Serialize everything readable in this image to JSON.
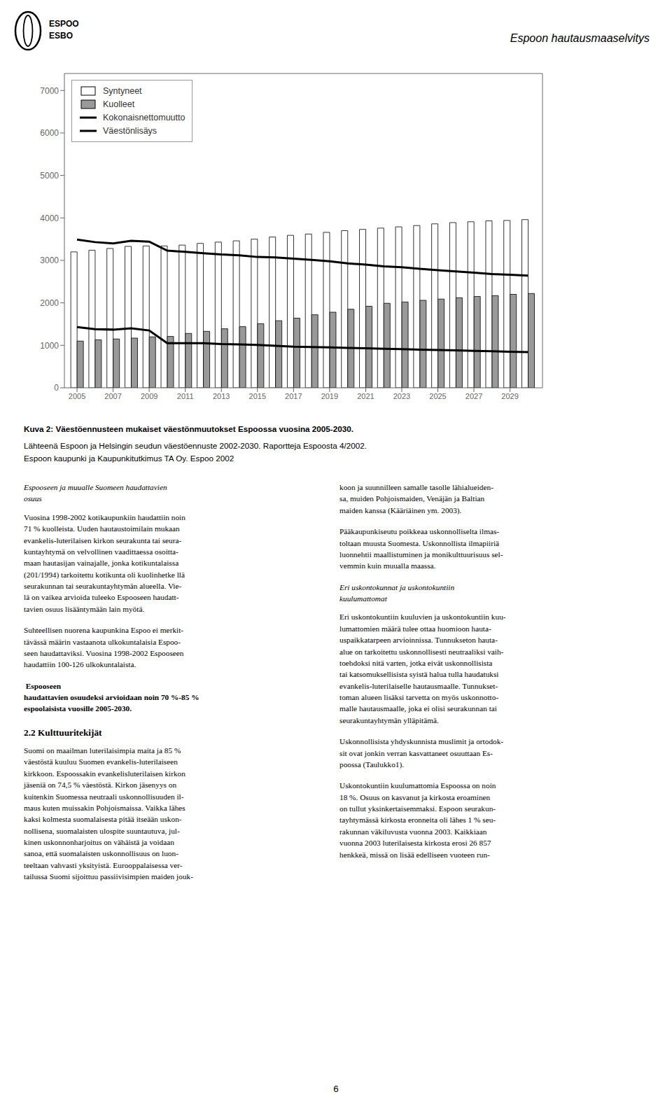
{
  "chart_data": {
    "type": "bar",
    "title": "Kuva 2: Väestöennusteen mukaiset väestönmuutokset Espoossa vuosina 2005-2030.",
    "x": [
      2005,
      2006,
      2007,
      2008,
      2009,
      2010,
      2011,
      2012,
      2013,
      2014,
      2015,
      2016,
      2017,
      2018,
      2019,
      2020,
      2021,
      2022,
      2023,
      2024,
      2025,
      2026,
      2027,
      2028,
      2029,
      2030
    ],
    "xlim": [
      2004.3,
      2030.8
    ],
    "xticks": [
      2005,
      2007,
      2009,
      2011,
      2013,
      2015,
      2017,
      2019,
      2021,
      2023,
      2025,
      2027,
      2029
    ],
    "ylim": [
      0,
      7400
    ],
    "yticks": [
      0,
      1000,
      2000,
      3000,
      4000,
      5000,
      6000,
      7000
    ],
    "grid": false,
    "legend": "upper left",
    "series": [
      {
        "name": "Syntyneet",
        "type": "bar",
        "color": "#ffffff",
        "values": [
          3200,
          3240,
          3280,
          3330,
          3340,
          3340,
          3360,
          3400,
          3430,
          3460,
          3500,
          3550,
          3590,
          3620,
          3660,
          3700,
          3730,
          3760,
          3790,
          3820,
          3860,
          3890,
          3910,
          3930,
          3940,
          3960
        ]
      },
      {
        "name": "Kuolleet",
        "type": "bar",
        "color": "#999999",
        "values": [
          1100,
          1130,
          1150,
          1170,
          1200,
          1210,
          1280,
          1330,
          1390,
          1440,
          1510,
          1580,
          1640,
          1720,
          1780,
          1850,
          1920,
          1990,
          2020,
          2060,
          2090,
          2120,
          2150,
          2170,
          2200,
          2220
        ]
      },
      {
        "name": "Kokonaisnettomuutto",
        "type": "line",
        "color": "#000000",
        "values": [
          3490,
          3430,
          3400,
          3460,
          3440,
          3230,
          3200,
          3170,
          3140,
          3120,
          3080,
          3070,
          3040,
          3010,
          2980,
          2930,
          2900,
          2860,
          2840,
          2800,
          2770,
          2740,
          2710,
          2680,
          2660,
          2640
        ]
      },
      {
        "name": "Väestönlisäys",
        "type": "line",
        "color": "#000000",
        "values": [
          1430,
          1380,
          1370,
          1400,
          1350,
          1050,
          1050,
          1050,
          1030,
          1020,
          1010,
          990,
          970,
          960,
          950,
          940,
          930,
          920,
          910,
          900,
          890,
          880,
          870,
          860,
          850,
          840
        ]
      }
    ],
    "annotations": [
      "ESPOO",
      "ESBO",
      "Espoon hautausmaaselvitys",
      "Lähteenä Espoon ja Helsingin seudun väestöennuste 2002-2030. Raportteja Espoosta 4/2002.",
      "Espoon kaupunki ja Kaupunkitutkimus TA Oy. Espoo 2002",
      "Espooseen ja muualle Suomeen haudattavien\nosuus",
      "Vuosina 1998-2002 kotikaupunkiin haudattiin noin\n71 % kuolleista. Uuden hautaustoimilain mukaan\nevankelis-luterilaisen kirkon seurakunta tai seura-\nkuntayhtymä on velvollinen vaadittaessa osoitta-\nmaan hautasijan vainajalle, jonka kotikuntalaissa\n(201/1994) tarkoitettu kotikunta oli kuolinhetke llä\nseurakunnan tai seurakuntayhtymän alueella. Vie-\nlä on vaikea arvioida tuleeko Espooseen haudatt-\ntavien osuus lisääntymään lain myötä.",
      "Suhteellisen nuorena kaupunkina Espoo ei merkit-\ntävässä määrin vastaanota ulkokuntalaisia Espoo-\nseen haudattaviksi. Vuosina 1998-2002 Espooseen\nhaudattiin 100-126 ulkokuntalaista.",
      " Espooseen\nhaudattavien osuudeksi arvioidaan noin 70 %-85 %\nespoolaisista vuosille 2005-2030.",
      "2.2 Kulttuuritekijät",
      "Suomi on maailman luterilaisimpia maita ja 85 %\nväestöstä kuuluu Suomen evankelis-luterilaiseen\nkirkkoon. Espoossakin evankelisluterilaisen kirkon\njäseniä on 74,5 % väestöstä. Kirkon jäsenyys on\nkuitenkin Suomessa neutraali uskonnollisuuden il-\nmaus kuten muissakin Pohjoismaissa. Vaikka lähes\nkaksi kolmesta suomalaisesta pitää itseään uskon-\nnollisena, suomalaisten ulospite suuntautuva, jul-\nkinen uskonnonharjoitus on vähäistä ja voidaan\nsanoa, että suomalaisten uskonnollisuus on luon-\nteeltaan vahvasti yksityistä. Eurooppalaisessa ver-\ntailussa Suomi sijoittuu passiivisimpien maiden jouk-",
      "koon ja suunnilleen samalle tasolle lähialueiden-\nsa, muiden Pohjoismaiden, Venäjän ja Baltian\nmaiden kanssa (Kääriäinen ym. 2003).",
      "Pääkaupunkiseutu poikkeaa uskonnolliselta ilmas-\ntoltaan muusta Suomesta. Uskonnollista ilmapiiriä\nluonnehtii maallistuminen ja monikulttuurisuus sel-\nvemmin kuin muualla maassa.",
      "Eri uskontokunnat ja uskontokuntiin\nkuulumattomat",
      "Eri uskontokuntiin kuuluvien ja uskontokuntiin kuu-\nlumattomien määrä tulee ottaa huomioon hauta-\nuspaikkatarpeen arvioinnissa. Tunnukseton hauta-\nalue on tarkoitettu uskonnollisesti neutraaliksi vaih-\ntoehdoksi nitä varten, jotka eivät uskonnollisista\ntai katsomuksellisista syistä halua tulla haudatuksi\nevankelis-luterilaiselle hautausmaalle. Tunnukset-\ntoman alueen lisäksi tarvetta on myös uskonnotto-\nmalle hautausmaalle, joka ei olisi seurakunnan tai\nseurakuntayhtymän ylläpitämä.",
      "Uskonnollisista yhdyskunnista muslimit ja ortodok-\nsit ovat jonkin verran kasvattaneet osuuttaan Es-\npoossa (Taulukko1).",
      "Uskontokuntiin kuulumattomia Espoossa on noin\n18 %. Osuus on kasvanut ja kirkosta eroaminen\non tullut yksinkertaisemmaksi. Espoon seurakun-\ntayhtymässä kirkosta eronneita oli lähes 1 % seu-\nrakunnan väkiluvusta vuonna 2003. Kaikkiaan\nvuonna 2003 luterilaisesta kirkosta erosi 26 857\nhenkkeä, missä on lisää edelliseen vuoteen run-",
      "6"
    ]
  }
}
